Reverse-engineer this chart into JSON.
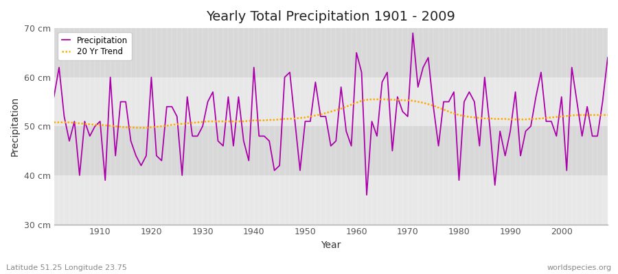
{
  "title": "Yearly Total Precipitation 1901 - 2009",
  "xlabel": "Year",
  "ylabel": "Precipitation",
  "xlim": [
    1901,
    2009
  ],
  "ylim": [
    30,
    70
  ],
  "yticks": [
    30,
    40,
    50,
    60,
    70
  ],
  "ytick_labels": [
    "30 cm",
    "40 cm",
    "50 cm",
    "60 cm",
    "70 cm"
  ],
  "fig_bg_color": "#ffffff",
  "band_colors": [
    "#e8e8e8",
    "#d8d8d8"
  ],
  "precip_color": "#aa00aa",
  "trend_color": "#ffaa00",
  "subtitle_left": "Latitude 51.25 Longitude 23.75",
  "subtitle_right": "worldspecies.org",
  "years": [
    1901,
    1902,
    1903,
    1904,
    1905,
    1906,
    1907,
    1908,
    1909,
    1910,
    1911,
    1912,
    1913,
    1914,
    1915,
    1916,
    1917,
    1918,
    1919,
    1920,
    1921,
    1922,
    1923,
    1924,
    1925,
    1926,
    1927,
    1928,
    1929,
    1930,
    1931,
    1932,
    1933,
    1934,
    1935,
    1936,
    1937,
    1938,
    1939,
    1940,
    1941,
    1942,
    1943,
    1944,
    1945,
    1946,
    1947,
    1948,
    1949,
    1950,
    1951,
    1952,
    1953,
    1954,
    1955,
    1956,
    1957,
    1958,
    1959,
    1960,
    1961,
    1962,
    1963,
    1964,
    1965,
    1966,
    1967,
    1968,
    1969,
    1970,
    1971,
    1972,
    1973,
    1974,
    1975,
    1976,
    1977,
    1978,
    1979,
    1980,
    1981,
    1982,
    1983,
    1984,
    1985,
    1986,
    1987,
    1988,
    1989,
    1990,
    1991,
    1992,
    1993,
    1994,
    1995,
    1996,
    1997,
    1998,
    1999,
    2000,
    2001,
    2002,
    2003,
    2004,
    2005,
    2006,
    2007,
    2008,
    2009
  ],
  "precip": [
    56,
    62,
    52,
    47,
    51,
    40,
    51,
    48,
    50,
    51,
    39,
    60,
    44,
    55,
    55,
    47,
    44,
    42,
    44,
    60,
    44,
    43,
    54,
    54,
    52,
    40,
    56,
    48,
    48,
    50,
    55,
    57,
    47,
    46,
    56,
    46,
    56,
    47,
    43,
    62,
    48,
    48,
    47,
    41,
    42,
    60,
    61,
    51,
    41,
    51,
    51,
    59,
    52,
    52,
    46,
    47,
    58,
    49,
    46,
    65,
    61,
    36,
    51,
    48,
    59,
    61,
    45,
    56,
    53,
    52,
    69,
    58,
    62,
    64,
    54,
    46,
    55,
    55,
    57,
    39,
    55,
    57,
    55,
    46,
    60,
    50,
    38,
    49,
    44,
    49,
    57,
    44,
    49,
    50,
    56,
    61,
    51,
    51,
    48,
    56,
    41,
    62,
    55,
    48,
    54,
    48,
    48,
    55,
    64
  ],
  "trend": [
    50.8,
    50.8,
    50.8,
    50.8,
    50.7,
    50.6,
    50.5,
    50.4,
    50.3,
    50.3,
    50.2,
    50.1,
    50.0,
    49.9,
    49.8,
    49.8,
    49.7,
    49.7,
    49.7,
    49.8,
    49.9,
    50.0,
    50.1,
    50.3,
    50.4,
    50.5,
    50.6,
    50.7,
    50.8,
    50.9,
    51.0,
    51.0,
    51.0,
    51.0,
    51.0,
    51.0,
    51.0,
    51.0,
    51.1,
    51.2,
    51.2,
    51.2,
    51.3,
    51.3,
    51.4,
    51.5,
    51.5,
    51.6,
    51.7,
    51.8,
    52.0,
    52.2,
    52.4,
    52.7,
    53.0,
    53.3,
    53.6,
    54.0,
    54.4,
    54.8,
    55.2,
    55.4,
    55.5,
    55.5,
    55.5,
    55.5,
    55.4,
    55.4,
    55.3,
    55.3,
    55.2,
    55.0,
    54.8,
    54.5,
    54.2,
    53.8,
    53.4,
    53.0,
    52.6,
    52.3,
    52.1,
    51.9,
    51.8,
    51.7,
    51.6,
    51.6,
    51.5,
    51.5,
    51.5,
    51.4,
    51.4,
    51.4,
    51.4,
    51.5,
    51.5,
    51.6,
    51.7,
    51.8,
    51.9,
    52.0,
    52.1,
    52.2,
    52.3,
    52.3,
    52.3,
    52.3,
    52.3,
    52.3,
    52.3
  ]
}
